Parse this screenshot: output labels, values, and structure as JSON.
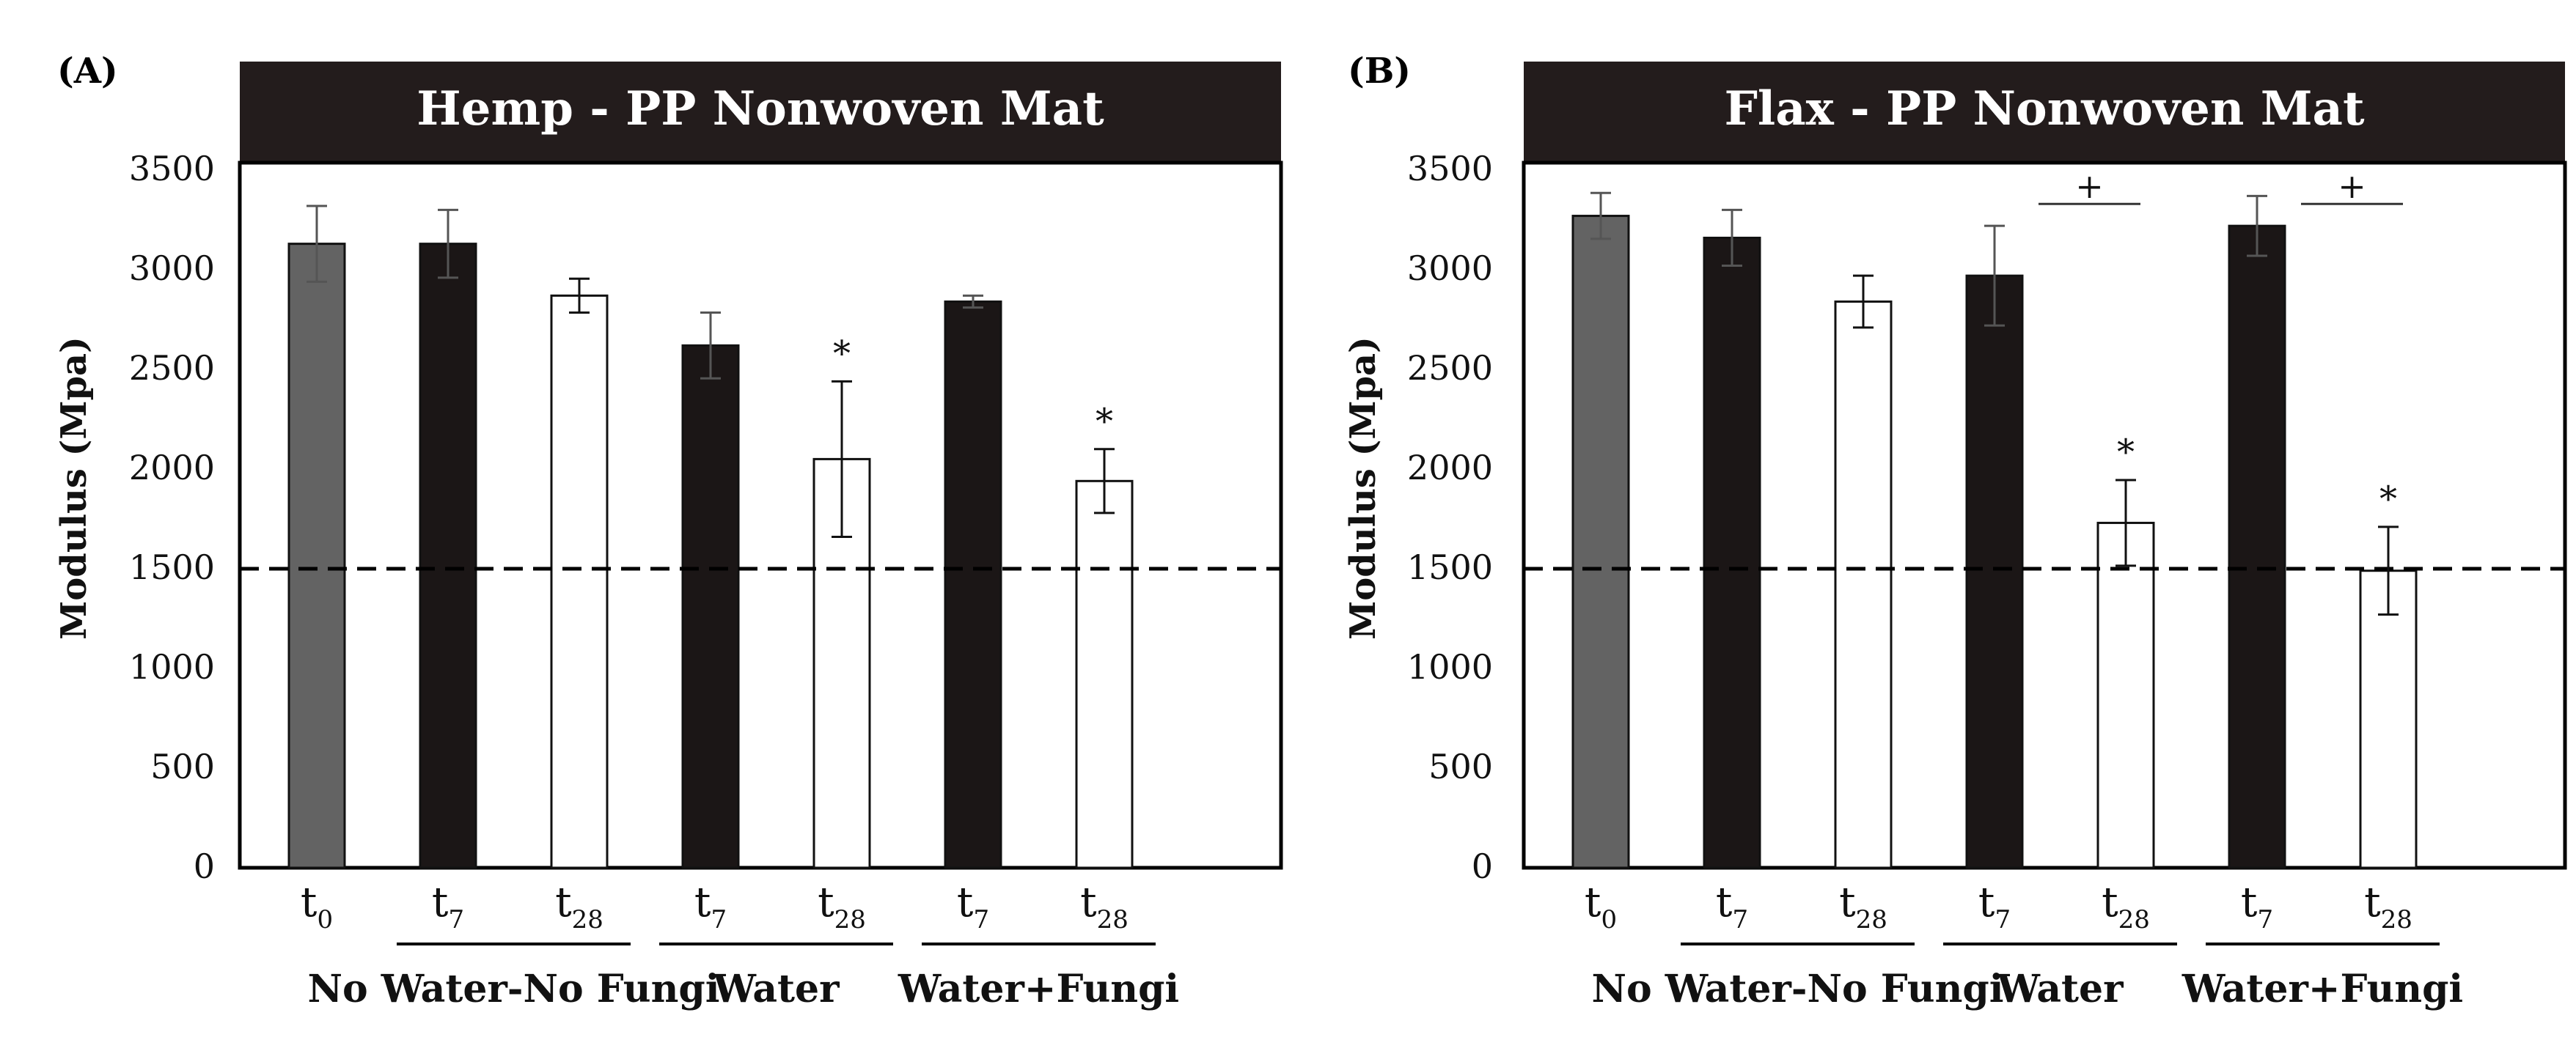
{
  "chart_data": [
    {
      "type": "bar",
      "panel_label": "(A)",
      "title": "Hemp - PP Nonwoven Mat",
      "xlabel": "",
      "ylabel": "Modulus (Mpa)",
      "ylim": [
        0,
        3500
      ],
      "yticks": [
        0,
        500,
        1000,
        1500,
        2000,
        2500,
        3000,
        3500
      ],
      "reference_line": 1500,
      "bars": [
        {
          "label": "t",
          "sub": "0",
          "value": 3130,
          "error": 190,
          "fill": "#636363",
          "annotation": ""
        },
        {
          "label": "t",
          "sub": "7",
          "value": 3130,
          "error": 170,
          "fill": "#1b1616",
          "annotation": ""
        },
        {
          "label": "t",
          "sub": "28",
          "value": 2870,
          "error": 85,
          "fill": "#ffffff",
          "annotation": ""
        },
        {
          "label": "t",
          "sub": "7",
          "value": 2620,
          "error": 165,
          "fill": "#1b1616",
          "annotation": ""
        },
        {
          "label": "t",
          "sub": "28",
          "value": 2050,
          "error": 390,
          "fill": "#ffffff",
          "annotation": "*"
        },
        {
          "label": "t",
          "sub": "7",
          "value": 2840,
          "error": 30,
          "fill": "#1b1616",
          "annotation": ""
        },
        {
          "label": "t",
          "sub": "28",
          "value": 1940,
          "error": 160,
          "fill": "#ffffff",
          "annotation": "*"
        }
      ],
      "groups": [
        {
          "name": "No Water-No Fungi",
          "bars": [
            1,
            2
          ]
        },
        {
          "name": "Water",
          "bars": [
            3,
            4
          ]
        },
        {
          "name": "Water+Fungi",
          "bars": [
            5,
            6
          ]
        }
      ],
      "brackets": []
    },
    {
      "type": "bar",
      "panel_label": "(B)",
      "title": "Flax - PP Nonwoven Mat",
      "xlabel": "",
      "ylabel": "Modulus (Mpa)",
      "ylim": [
        0,
        3500
      ],
      "yticks": [
        0,
        500,
        1000,
        1500,
        2000,
        2500,
        3000,
        3500
      ],
      "reference_line": 1500,
      "bars": [
        {
          "label": "t",
          "sub": "0",
          "value": 3270,
          "error": 115,
          "fill": "#636363",
          "annotation": ""
        },
        {
          "label": "t",
          "sub": "7",
          "value": 3160,
          "error": 140,
          "fill": "#1b1616",
          "annotation": ""
        },
        {
          "label": "t",
          "sub": "28",
          "value": 2840,
          "error": 130,
          "fill": "#ffffff",
          "annotation": ""
        },
        {
          "label": "t",
          "sub": "7",
          "value": 2970,
          "error": 250,
          "fill": "#1b1616",
          "annotation": ""
        },
        {
          "label": "t",
          "sub": "28",
          "value": 1730,
          "error": 215,
          "fill": "#ffffff",
          "annotation": "*"
        },
        {
          "label": "t",
          "sub": "7",
          "value": 3220,
          "error": 150,
          "fill": "#1b1616",
          "annotation": ""
        },
        {
          "label": "t",
          "sub": "28",
          "value": 1490,
          "error": 220,
          "fill": "#ffffff",
          "annotation": "*"
        }
      ],
      "groups": [
        {
          "name": "No Water-No Fungi",
          "bars": [
            1,
            2
          ]
        },
        {
          "name": "Water",
          "bars": [
            3,
            4
          ]
        },
        {
          "name": "Water+Fungi",
          "bars": [
            5,
            6
          ]
        }
      ],
      "brackets": [
        {
          "from_bar": 3,
          "to_bar": 4,
          "level": 3330,
          "symbol": "+"
        },
        {
          "from_bar": 5,
          "to_bar": 6,
          "level": 3330,
          "symbol": "+"
        }
      ]
    }
  ]
}
